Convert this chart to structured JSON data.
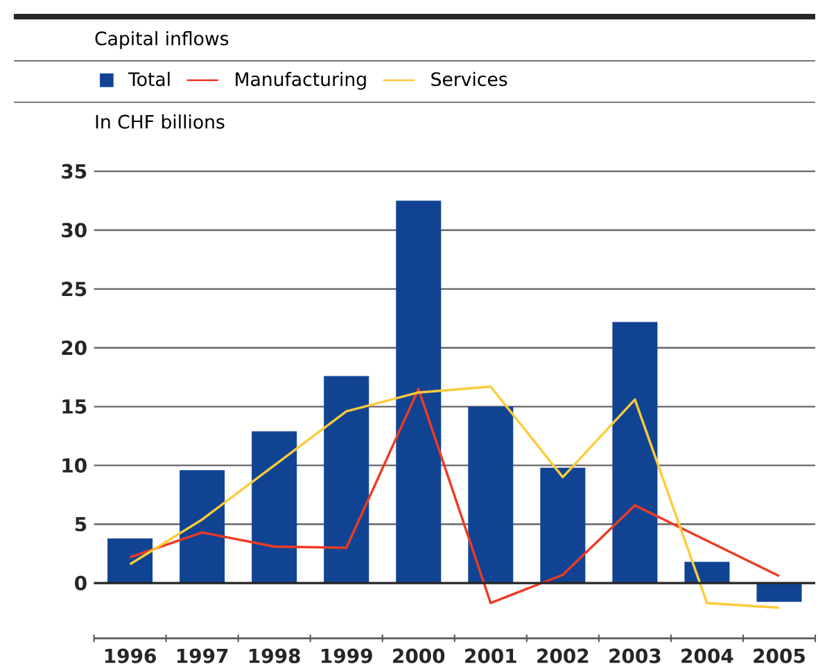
{
  "chart_data": {
    "type": "bar",
    "title": "Capital inflows",
    "ylabel": "In CHF billions",
    "categories": [
      "1996",
      "1997",
      "1998",
      "1999",
      "2000",
      "2001",
      "2002",
      "2003",
      "2004",
      "2005"
    ],
    "series": [
      {
        "name": "Total",
        "color": "#104493",
        "values": [
          3.8,
          9.6,
          12.9,
          17.6,
          32.5,
          15.0,
          9.8,
          22.2,
          1.8,
          -1.6
        ]
      },
      {
        "name": "Manufacturing",
        "type": "line",
        "color": "#ee3a24",
        "values": [
          2.2,
          4.3,
          3.1,
          3.0,
          16.5,
          -1.7,
          0.7,
          6.6,
          3.6,
          0.6
        ]
      },
      {
        "name": "Services",
        "type": "line",
        "color": "#fdcb3a",
        "values": [
          1.6,
          5.4,
          10.0,
          14.6,
          16.2,
          16.7,
          9.0,
          15.6,
          -1.7,
          -2.1
        ]
      }
    ],
    "ylim": [
      -4.7,
      35
    ],
    "yticks": [
      0,
      5,
      10,
      15,
      20,
      25,
      30,
      35
    ],
    "grid": "y",
    "legend": "top",
    "marker": "none",
    "line_style": "solid"
  }
}
